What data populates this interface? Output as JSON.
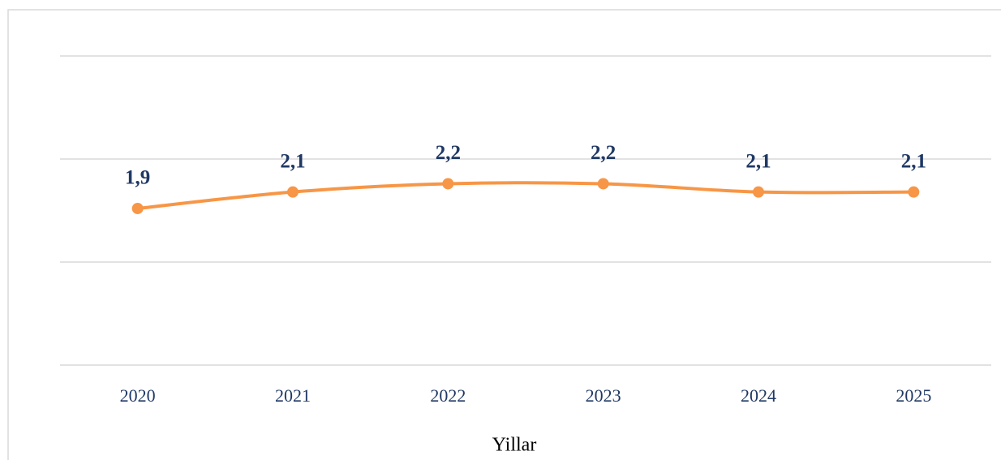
{
  "chart_data": {
    "type": "line",
    "x_label": "Yillar",
    "categories": [
      "2020",
      "2021",
      "2022",
      "2023",
      "2024",
      "2025"
    ],
    "series": [
      {
        "name": "Yillar",
        "color": "#f79646",
        "values": [
          1.9,
          2.1,
          2.2,
          2.2,
          2.1,
          2.1
        ],
        "value_labels": [
          "1,9",
          "2,1",
          "2,2",
          "2,2",
          "2,1",
          "2,1"
        ]
      }
    ],
    "ylim": [
      0,
      3.75
    ],
    "yticks": [
      0,
      1.25,
      2.5,
      3.75
    ],
    "grid": true
  }
}
